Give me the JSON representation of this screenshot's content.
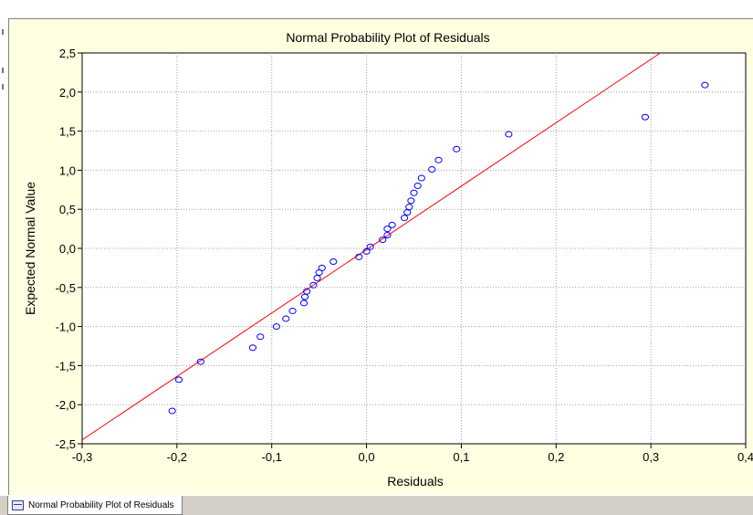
{
  "tab": {
    "label": "Normal Probability Plot of Residuals"
  },
  "chart_data": {
    "type": "scatter",
    "title": "Normal Probability Plot of Residuals",
    "xlabel": "Residuals",
    "ylabel": "Expected Normal Value",
    "xlim": [
      -0.3,
      0.4
    ],
    "ylim": [
      -2.5,
      2.5
    ],
    "xticks": [
      -0.3,
      -0.2,
      -0.1,
      0.0,
      0.1,
      0.2,
      0.3,
      0.4
    ],
    "yticks": [
      -2.5,
      -2.0,
      -1.5,
      -1.0,
      -0.5,
      0.0,
      0.5,
      1.0,
      1.5,
      2.0,
      2.5
    ],
    "xtick_labels": [
      "-0,3",
      "-0,2",
      "-0,1",
      "0,0",
      "0,1",
      "0,2",
      "0,3",
      "0,4"
    ],
    "ytick_labels": [
      "-2,5",
      "-2,0",
      "-1,5",
      "-1,0",
      "-0,5",
      "0,0",
      "0,5",
      "1,0",
      "1,5",
      "2,0",
      "2,5"
    ],
    "grid": true,
    "marker_color": "#0000ff",
    "line_color": "#ff0000",
    "reference_line": [
      [
        -0.3,
        -2.45
      ],
      [
        0.31,
        2.5
      ]
    ],
    "points": [
      [
        -0.205,
        -2.08
      ],
      [
        -0.198,
        -1.68
      ],
      [
        -0.175,
        -1.45
      ],
      [
        -0.12,
        -1.27
      ],
      [
        -0.112,
        -1.13
      ],
      [
        -0.095,
        -1.0
      ],
      [
        -0.085,
        -0.9
      ],
      [
        -0.078,
        -0.8
      ],
      [
        -0.066,
        -0.7
      ],
      [
        -0.065,
        -0.62
      ],
      [
        -0.063,
        -0.55
      ],
      [
        -0.056,
        -0.47
      ],
      [
        -0.052,
        -0.38
      ],
      [
        -0.05,
        -0.31
      ],
      [
        -0.047,
        -0.25
      ],
      [
        -0.035,
        -0.17
      ],
      [
        -0.008,
        -0.11
      ],
      [
        0.0,
        -0.04
      ],
      [
        0.004,
        0.02
      ],
      [
        0.017,
        0.11
      ],
      [
        0.022,
        0.17
      ],
      [
        0.022,
        0.25
      ],
      [
        0.027,
        0.3
      ],
      [
        0.04,
        0.39
      ],
      [
        0.043,
        0.46
      ],
      [
        0.045,
        0.53
      ],
      [
        0.047,
        0.61
      ],
      [
        0.05,
        0.71
      ],
      [
        0.054,
        0.8
      ],
      [
        0.058,
        0.9
      ],
      [
        0.069,
        1.01
      ],
      [
        0.076,
        1.13
      ],
      [
        0.095,
        1.27
      ],
      [
        0.15,
        1.46
      ],
      [
        0.294,
        1.68
      ],
      [
        0.357,
        2.09
      ]
    ]
  }
}
